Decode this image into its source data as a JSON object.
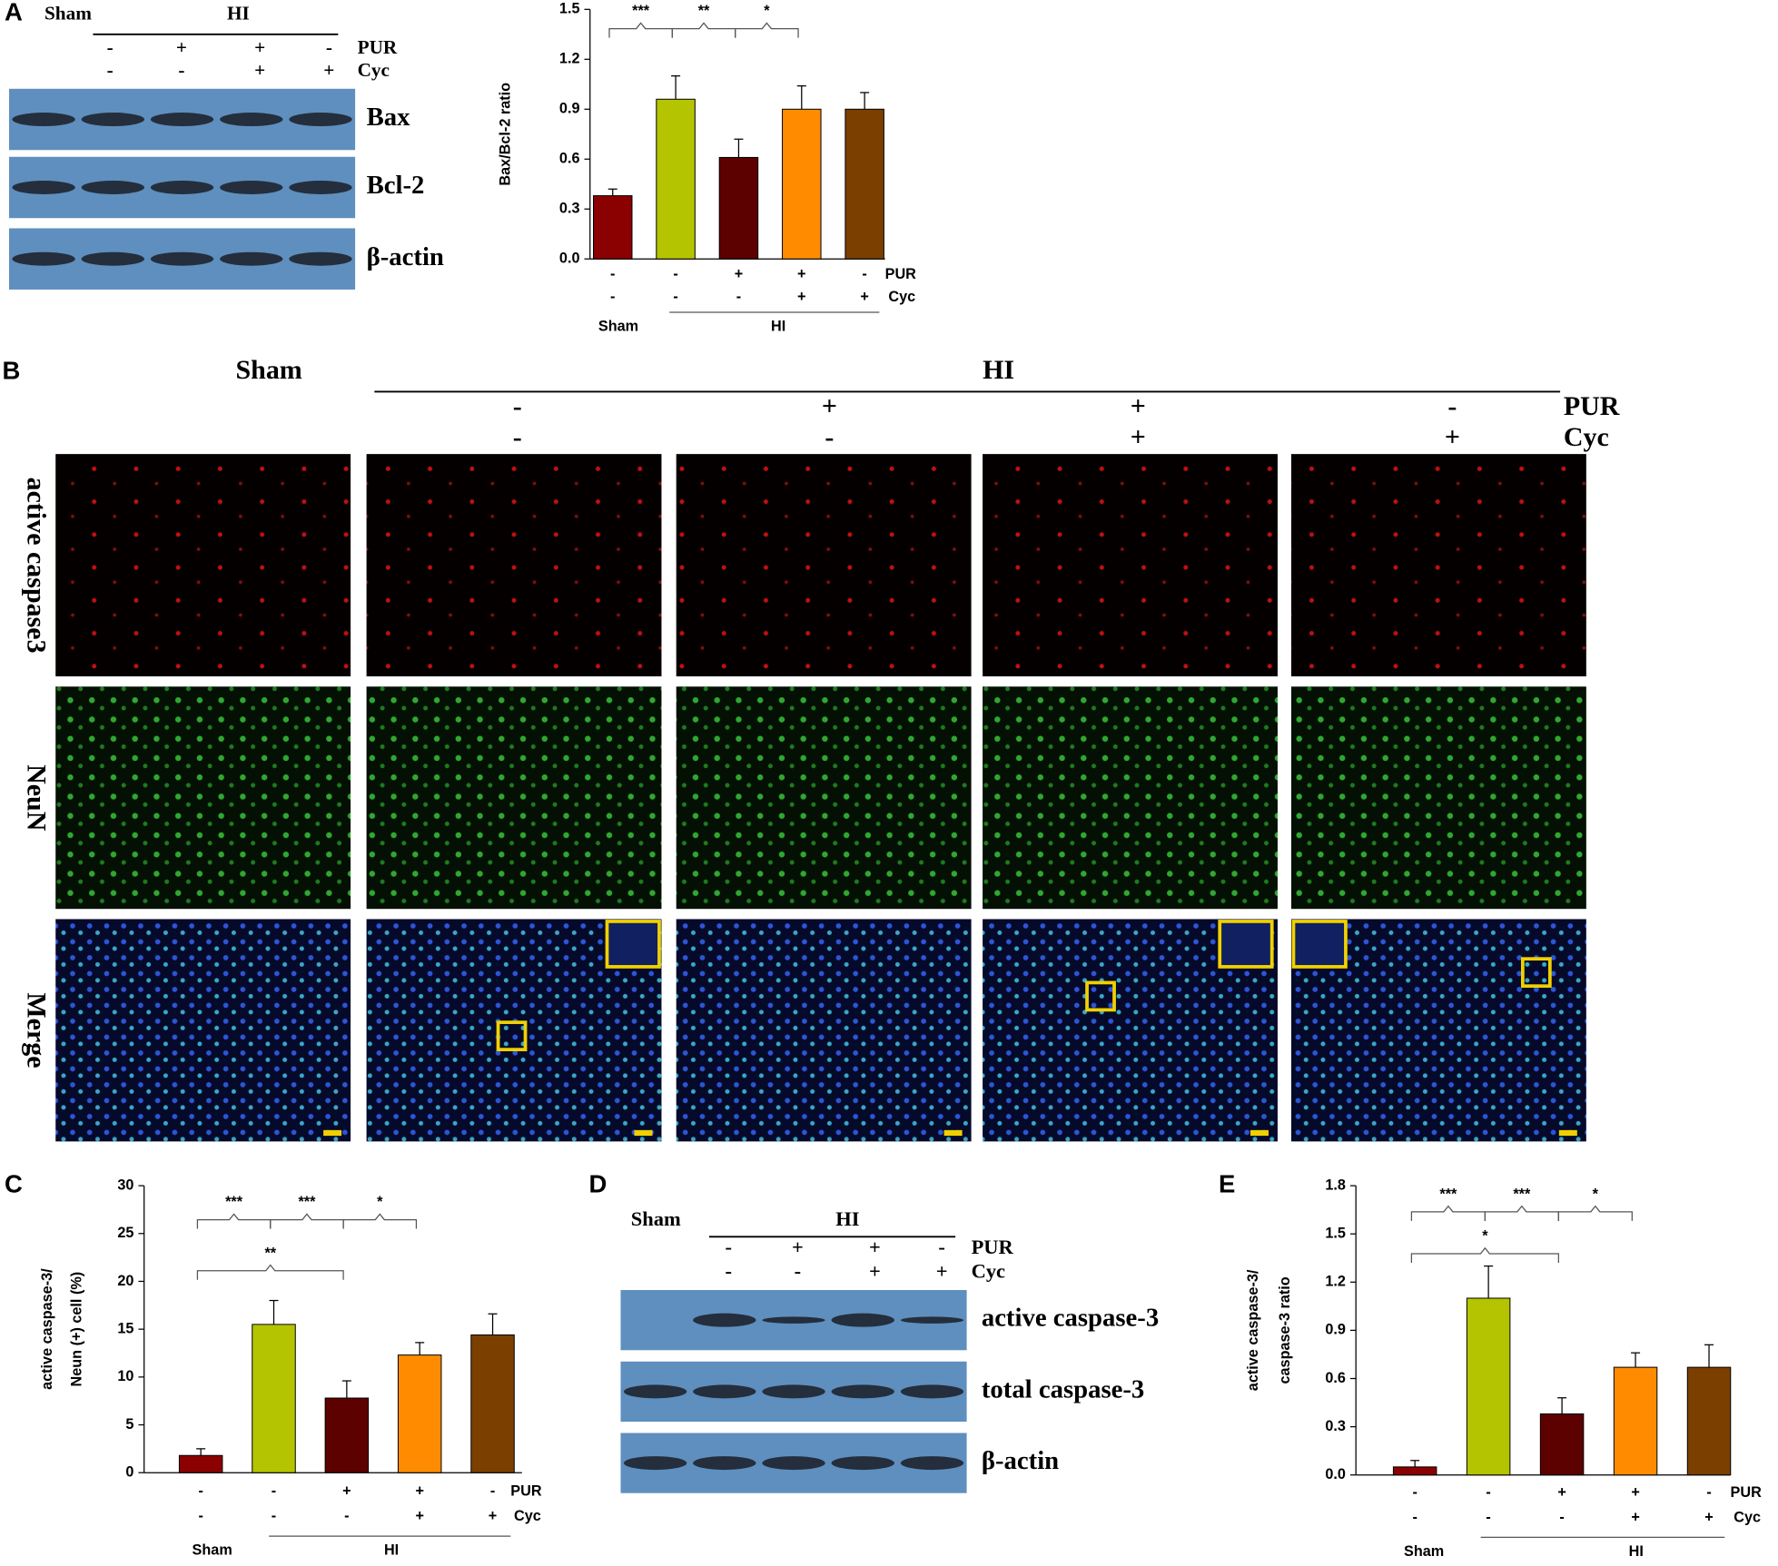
{
  "panel_labels": [
    "A",
    "B",
    "C",
    "D",
    "E"
  ],
  "blot_a": {
    "group_labels": [
      "Sham",
      "HI"
    ],
    "pur": [
      "-",
      "+",
      "+",
      "-"
    ],
    "cyc": [
      "-",
      "-",
      "+",
      "+"
    ],
    "treatment_labels": [
      "PUR",
      "Cyc"
    ],
    "bands": [
      "Bax",
      "Bcl-2",
      "β-actin"
    ]
  },
  "micrographs": {
    "group_labels": [
      "Sham",
      "HI"
    ],
    "pur": [
      "-",
      "+",
      "+",
      "-"
    ],
    "cyc": [
      "-",
      "-",
      "+",
      "+"
    ],
    "treatment_labels": [
      "PUR",
      "Cyc"
    ],
    "rows": [
      "active caspase3",
      "NeuN",
      "Merge"
    ]
  },
  "blot_d": {
    "group_labels": [
      "Sham",
      "HI"
    ],
    "pur": [
      "-",
      "+",
      "+",
      "-"
    ],
    "cyc": [
      "-",
      "-",
      "+",
      "+"
    ],
    "treatment_labels": [
      "PUR",
      "Cyc"
    ],
    "bands": [
      "active caspase-3",
      "total caspase-3",
      "β-actin"
    ]
  },
  "chart_data": [
    {
      "type": "bar",
      "ylabel": [
        "Bax/Bcl-2 ratio"
      ],
      "pur": [
        "-",
        "-",
        "+",
        "+",
        "-"
      ],
      "cyc": [
        "-",
        "-",
        "-",
        "+",
        "+"
      ],
      "treatment_labels": [
        "PUR",
        "Cyc"
      ],
      "group_labels": [
        "Sham",
        "HI"
      ],
      "values": [
        0.38,
        0.96,
        0.61,
        0.9,
        0.9
      ],
      "errors": [
        0.04,
        0.14,
        0.11,
        0.14,
        0.1
      ],
      "colors": [
        "#8b0000",
        "#b5c400",
        "#5c0000",
        "#ff8c00",
        "#7b3f00"
      ],
      "ylim": [
        0,
        1.5
      ],
      "yticks": [
        {
          "value": 0,
          "label": "0.0"
        },
        0.3,
        0.6,
        0.9,
        1.2,
        1.5
      ],
      "significance": [
        {
          "pair": [
            0,
            1
          ],
          "label": "***"
        },
        {
          "pair": [
            1,
            2
          ],
          "label": "**"
        },
        {
          "pair": [
            2,
            3
          ],
          "label": "*"
        }
      ]
    },
    {
      "type": "bar",
      "ylabel": [
        "active caspase-3/",
        "Neun (+) cell (%)"
      ],
      "pur": [
        "-",
        "-",
        "+",
        "+",
        "-"
      ],
      "cyc": [
        "-",
        "-",
        "-",
        "+",
        "+"
      ],
      "treatment_labels": [
        "PUR",
        "Cyc"
      ],
      "group_labels": [
        "Sham",
        "HI"
      ],
      "values": [
        1.8,
        15.5,
        7.8,
        12.3,
        14.4
      ],
      "errors": [
        0.7,
        2.5,
        1.8,
        1.3,
        2.2
      ],
      "colors": [
        "#8b0000",
        "#b5c400",
        "#5c0000",
        "#ff8c00",
        "#7b3f00"
      ],
      "ylim": [
        0,
        30
      ],
      "yticks": [
        0,
        5,
        10,
        15,
        20,
        25,
        30
      ],
      "significance": [
        {
          "pair": [
            0,
            1
          ],
          "label": "***"
        },
        {
          "pair": [
            1,
            2
          ],
          "label": "***"
        },
        {
          "pair": [
            2,
            3
          ],
          "label": "*"
        },
        {
          "pair": [
            0,
            2
          ],
          "label": "**"
        }
      ]
    },
    {
      "type": "bar",
      "ylabel": [
        "active caspase-3/",
        "caspase-3 ratio"
      ],
      "pur": [
        "-",
        "-",
        "+",
        "+",
        "-"
      ],
      "cyc": [
        "-",
        "-",
        "-",
        "+",
        "+"
      ],
      "treatment_labels": [
        "PUR",
        "Cyc"
      ],
      "group_labels": [
        "Sham",
        "HI"
      ],
      "values": [
        0.05,
        1.1,
        0.38,
        0.67,
        0.67
      ],
      "errors": [
        0.04,
        0.2,
        0.1,
        0.09,
        0.14
      ],
      "colors": [
        "#8b0000",
        "#b5c400",
        "#5c0000",
        "#ff8c00",
        "#7b3f00"
      ],
      "ylim": [
        0,
        1.8
      ],
      "yticks": [
        {
          "value": 0,
          "label": "0.0"
        },
        0.3,
        0.6,
        0.9,
        1.2,
        1.5,
        1.8
      ],
      "significance": [
        {
          "pair": [
            0,
            1
          ],
          "label": "***"
        },
        {
          "pair": [
            1,
            2
          ],
          "label": "***"
        },
        {
          "pair": [
            2,
            3
          ],
          "label": "*"
        },
        {
          "pair": [
            0,
            2
          ],
          "label": "*"
        }
      ]
    }
  ]
}
